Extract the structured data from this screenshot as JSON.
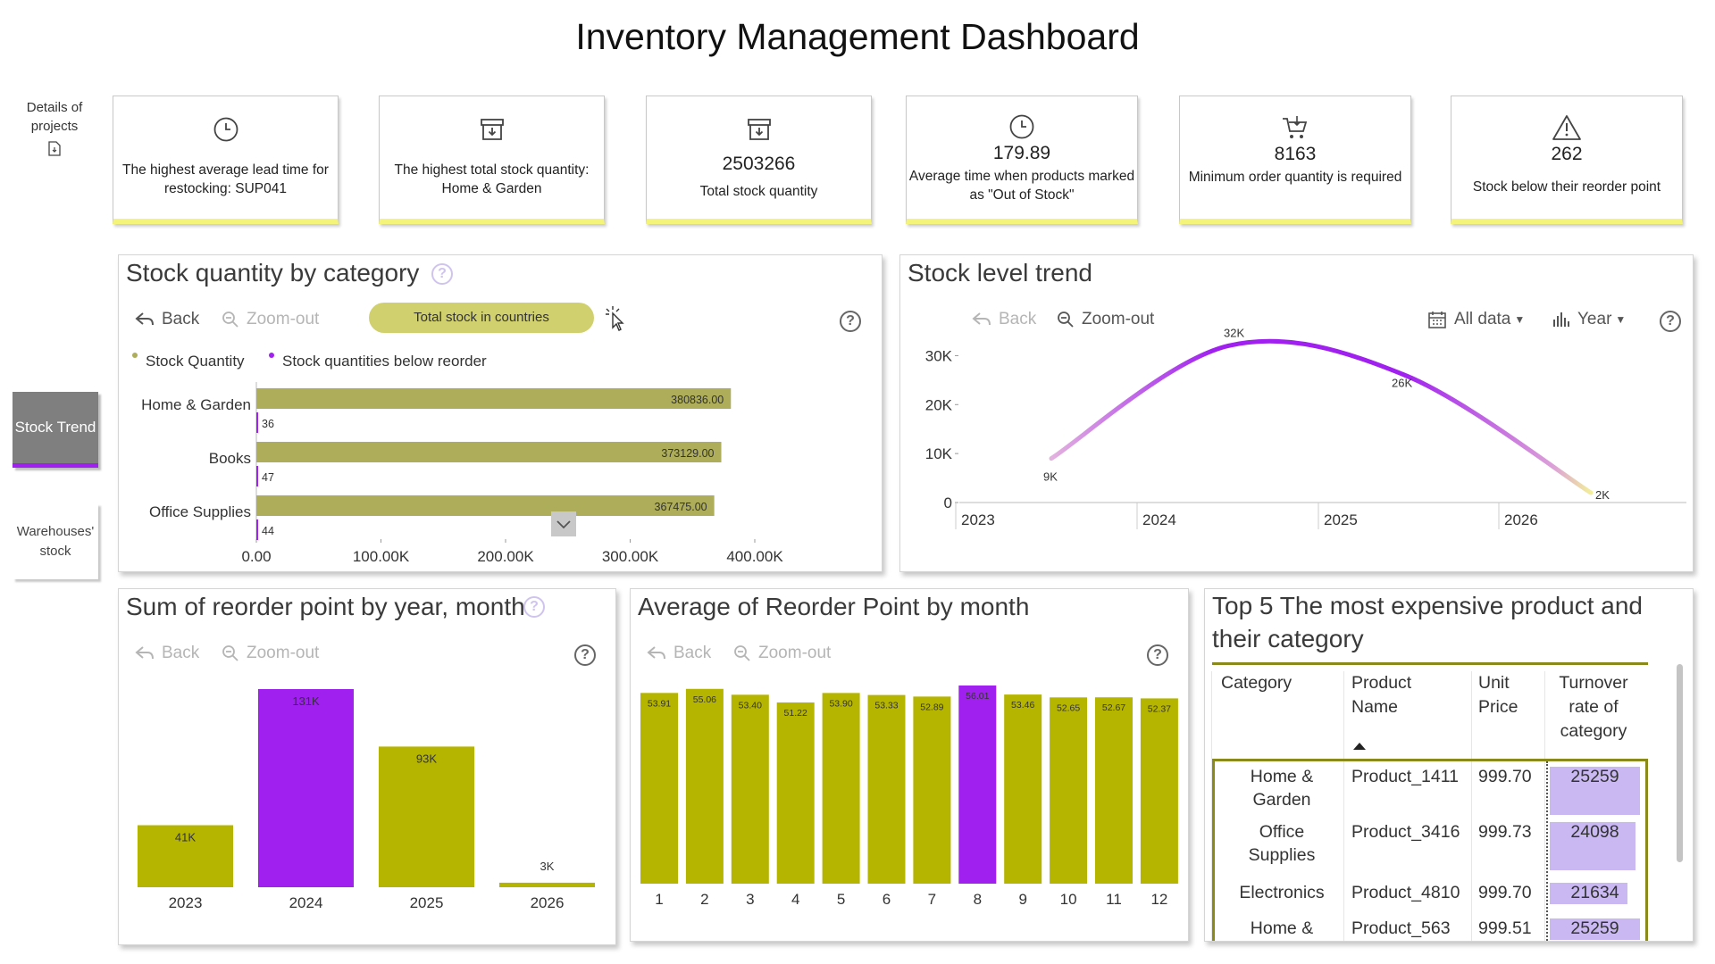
{
  "page": {
    "title": "Inventory Management Dashboard"
  },
  "nav": {
    "details_label": "Details of projects",
    "details_icon": "document-icon",
    "stock_trend": "Stock Trend",
    "warehouses": "Warehouses' stock",
    "active_color": "#a020f0"
  },
  "kpis": [
    {
      "icon": "clock-icon",
      "value": "",
      "text": "The highest average lead time for restocking: SUP041"
    },
    {
      "icon": "archive-icon",
      "value": "",
      "text": "The highest total stock quantity: Home & Garden"
    },
    {
      "icon": "archive-icon",
      "value": "2503266",
      "text": "Total stock quantity"
    },
    {
      "icon": "clock-icon",
      "value": "179.89",
      "text": "Average time when products marked as \"Out of Stock\""
    },
    {
      "icon": "cart-icon",
      "value": "8163",
      "text": "Minimum order quantity is required"
    },
    {
      "icon": "warning-icon",
      "value": "262",
      "text": "Stock below their reorder point"
    }
  ],
  "toolbar": {
    "back": "Back",
    "zoom_out": "Zoom-out",
    "all_data": "All data",
    "year": "Year"
  },
  "panel_category": {
    "title": "Stock quantity by category",
    "drill_button": "Total stock in countries",
    "legend": [
      "Stock Quantity",
      "Stock quantities below reorder"
    ]
  },
  "panel_trend": {
    "title": "Stock level trend"
  },
  "panel_reorder_year": {
    "title": "Sum of reorder point by year, month"
  },
  "panel_reorder_month": {
    "title": "Average of Reorder Point by month"
  },
  "panel_top5": {
    "title": "Top 5 The most expensive product and their category",
    "headers": [
      "Category",
      "Product Name",
      "Unit Price",
      "Turnover rate of category"
    ],
    "rows": [
      {
        "category": "Home & Garden",
        "product": "Product_1411",
        "price": "999.70",
        "turnover": "25259",
        "turnover_value": 25259
      },
      {
        "category": "Office Supplies",
        "product": "Product_3416",
        "price": "999.73",
        "turnover": "24098",
        "turnover_value": 24098
      },
      {
        "category": "Electronics",
        "product": "Product_4810",
        "price": "999.70",
        "turnover": "21634",
        "turnover_value": 21634
      },
      {
        "category": "Home &",
        "product": "Product_563",
        "price": "999.51",
        "turnover": "25259",
        "turnover_value": 25259
      }
    ],
    "bar_color": "#c9b8f2"
  },
  "colors": {
    "olive": "#b5b500",
    "olive_bar": "#adad5a",
    "purple": "#a020f0",
    "kpi_accent": "#f4f47a"
  },
  "chart_data": [
    {
      "type": "bar",
      "orientation": "horizontal",
      "title": "Stock quantity by category",
      "categories": [
        "Home & Garden",
        "Books",
        "Office Supplies"
      ],
      "series": [
        {
          "name": "Stock Quantity",
          "values": [
            380836,
            373129,
            367475
          ],
          "labels": [
            "380836.00",
            "373129.00",
            "367475.00"
          ]
        },
        {
          "name": "Stock quantities below reorder",
          "values": [
            36,
            47,
            44
          ],
          "labels": [
            "36",
            "47",
            "44"
          ]
        }
      ],
      "x_ticks": [
        "0.00",
        "100.00K",
        "200.00K",
        "300.00K",
        "400.00K"
      ],
      "xlim": [
        0,
        400000
      ]
    },
    {
      "type": "line",
      "title": "Stock level trend",
      "x": [
        "2023",
        "2024",
        "2025",
        "2026"
      ],
      "values": [
        9000,
        32000,
        26000,
        2000
      ],
      "point_labels": [
        "9K",
        "32K",
        "26K",
        "2K"
      ],
      "y_ticks": [
        "0",
        "10K",
        "20K",
        "30K"
      ],
      "ylim": [
        0,
        35000
      ]
    },
    {
      "type": "bar",
      "title": "Sum of reorder point by year, month",
      "categories": [
        "2023",
        "2024",
        "2025",
        "2026"
      ],
      "values": [
        41000,
        131000,
        93000,
        3000
      ],
      "labels": [
        "41K",
        "131K",
        "93K",
        "3K"
      ],
      "highlight_index": 1
    },
    {
      "type": "bar",
      "title": "Average of Reorder Point by month",
      "categories": [
        "1",
        "2",
        "3",
        "4",
        "5",
        "6",
        "7",
        "8",
        "9",
        "10",
        "11",
        "12"
      ],
      "values": [
        53.91,
        55.06,
        53.4,
        51.22,
        53.9,
        53.33,
        52.89,
        56.01,
        53.46,
        52.65,
        52.67,
        52.37
      ],
      "labels": [
        "53.91",
        "55.06",
        "53.40",
        "51.22",
        "53.90",
        "53.33",
        "52.89",
        "56.01",
        "53.46",
        "52.65",
        "52.67",
        "52.37"
      ],
      "highlight_index": 7
    }
  ]
}
